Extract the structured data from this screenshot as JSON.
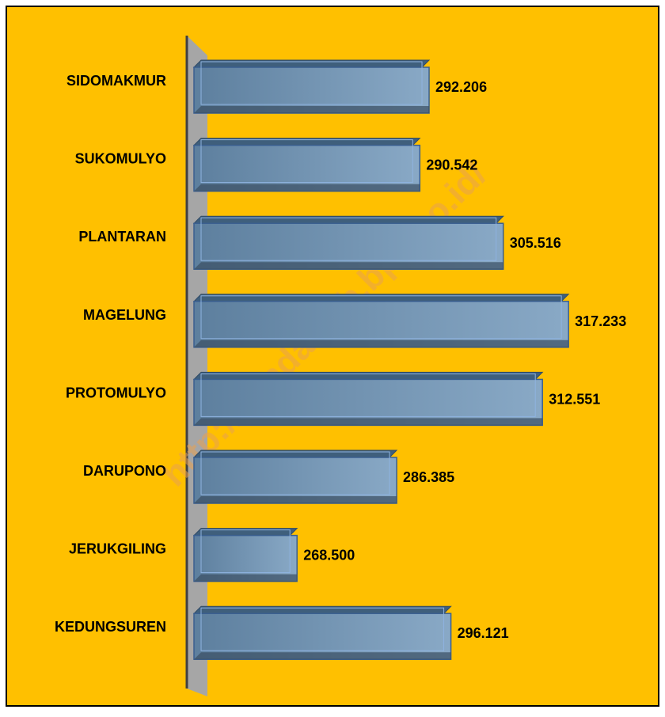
{
  "chart_data": {
    "type": "bar",
    "orientation": "horizontal",
    "categories": [
      "SIDOMAKMUR",
      "SUKOMULYO",
      "PLANTARAN",
      "MAGELUNG",
      "PROTOMULYO",
      "DARUPONO",
      "JERUKGILING",
      "KEDUNGSUREN"
    ],
    "values": [
      292206,
      290542,
      305516,
      317233,
      312551,
      286385,
      268500,
      296121
    ],
    "value_labels": [
      "292.206",
      "290.542",
      "305.516",
      "317.233",
      "312.551",
      "286.385",
      "268.500",
      "296.121"
    ],
    "color": "#6f8fae",
    "xlim": [
      250000,
      330000
    ],
    "watermark": "http://kendalkab.bps.go.id/"
  }
}
